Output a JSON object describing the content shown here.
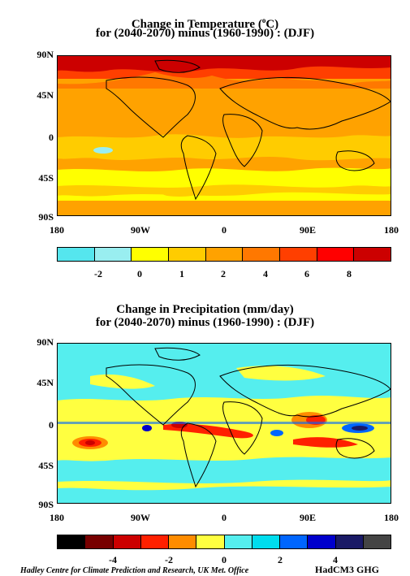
{
  "temperature_panel": {
    "title_line1": "Change in Temperature (",
    "title_sup": "o",
    "title_line1_end": "C)",
    "title_line2": "for (2040-2070) minus (1960-1990) : (DJF)",
    "lat_labels": [
      "90N",
      "45N",
      "0",
      "45S",
      "90S"
    ],
    "lon_labels": [
      "180",
      "90W",
      "0",
      "90E",
      "180"
    ],
    "colorbar": {
      "colors": [
        "#55e6ee",
        "#99eef0",
        "#ffff00",
        "#ffcc00",
        "#ffa200",
        "#ff7800",
        "#ff3f00",
        "#ff0000",
        "#cc0000"
      ],
      "tick_labels": [
        "-2",
        "0",
        "1",
        "2",
        "4",
        "6",
        "8"
      ]
    }
  },
  "precipitation_panel": {
    "title_line1": "Change in Precipitation (mm/day)",
    "title_line2": "for (2040-2070) minus (1960-1990) : (DJF)",
    "lat_labels": [
      "90N",
      "45N",
      "0",
      "45S",
      "90S"
    ],
    "lon_labels": [
      "180",
      "90W",
      "0",
      "90E",
      "180"
    ],
    "colorbar": {
      "colors": [
        "#000000",
        "#770000",
        "#cc0000",
        "#ff2000",
        "#ff8c00",
        "#ffff40",
        "#55eeee",
        "#00ddee",
        "#0066ff",
        "#0000cc",
        "#1a1a66",
        "#444444"
      ],
      "tick_labels": [
        "-4",
        "-2",
        "0",
        "2",
        "4"
      ]
    }
  },
  "footer": {
    "credit": "Hadley Centre for Climate Prediction and Research, UK Met. Office",
    "model": "HadCM3 GHG"
  }
}
